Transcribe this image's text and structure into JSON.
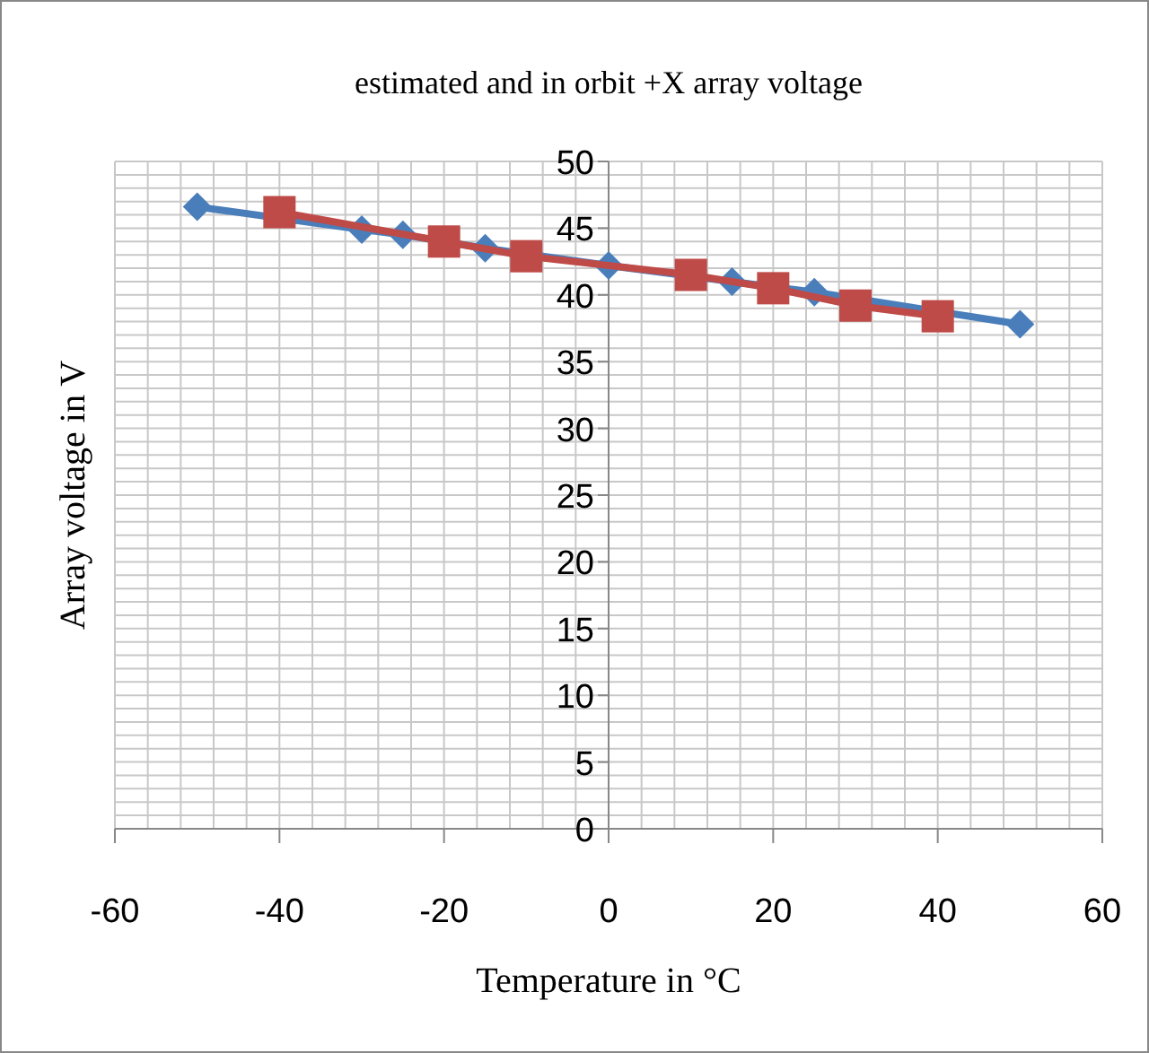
{
  "chart_data": {
    "type": "line",
    "title": "estimated and in orbit +X array voltage",
    "xlabel": "Temperature in °C",
    "ylabel": "Array voltage in V",
    "xlim": [
      -60,
      60
    ],
    "xticks": [
      -60,
      -40,
      -20,
      0,
      20,
      40,
      60
    ],
    "ylim": [
      0,
      50
    ],
    "yticks": [
      0,
      5,
      10,
      15,
      20,
      25,
      30,
      35,
      40,
      45,
      50
    ],
    "grid": true,
    "series": [
      {
        "color": "#4a7ebb",
        "marker": "diamond",
        "x": [
          -50,
          -40,
          -30,
          -25,
          -15,
          0,
          15,
          25,
          30,
          40,
          50
        ],
        "values": [
          46.6,
          null,
          44.9,
          44.5,
          43.5,
          42.2,
          41.0,
          40.2,
          null,
          null,
          37.8
        ]
      },
      {
        "color": "#be4b48",
        "marker": "square",
        "x": [
          -40,
          -20,
          -10,
          10,
          20,
          30,
          40
        ],
        "values": [
          46.2,
          44.0,
          42.9,
          41.5,
          40.5,
          39.2,
          38.4
        ]
      }
    ]
  }
}
